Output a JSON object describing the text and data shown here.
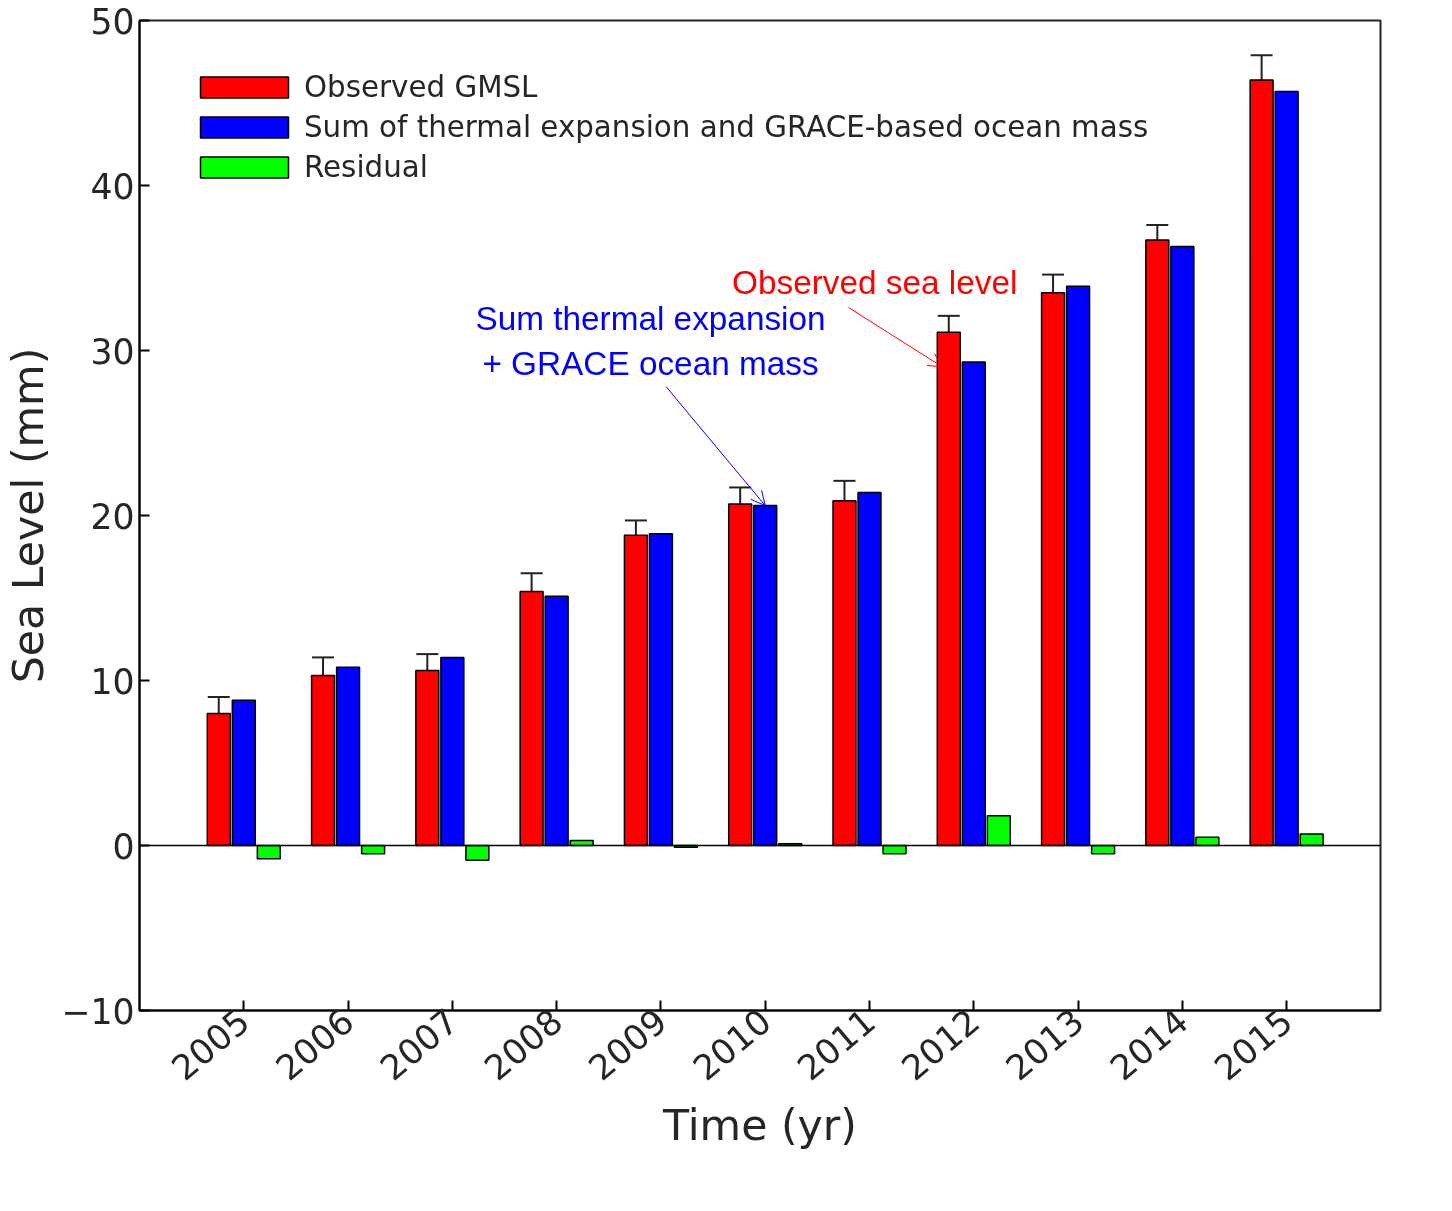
{
  "chart_data": {
    "type": "bar",
    "xlabel": "Time (yr)",
    "ylabel": "Sea Level (mm)",
    "categories": [
      "2005",
      "2006",
      "2007",
      "2008",
      "2009",
      "2010",
      "2011",
      "2012",
      "2013",
      "2014",
      "2015"
    ],
    "series": [
      {
        "name": "Observed GMSL",
        "color": "#ff0000",
        "values": [
          8.0,
          10.3,
          10.6,
          15.4,
          18.8,
          20.7,
          20.9,
          31.1,
          33.5,
          36.7,
          46.4
        ],
        "errors": [
          1.0,
          1.1,
          1.0,
          1.1,
          0.9,
          1.0,
          1.2,
          1.0,
          1.1,
          0.9,
          1.5
        ]
      },
      {
        "name": "Sum of thermal expansion and GRACE-based ocean mass",
        "color": "#0000ff",
        "values": [
          8.8,
          10.8,
          11.4,
          15.1,
          18.9,
          20.6,
          21.4,
          29.3,
          33.9,
          36.3,
          45.7
        ]
      },
      {
        "name": "Residual",
        "color": "#00ff00",
        "values": [
          -0.8,
          -0.5,
          -0.9,
          0.3,
          -0.1,
          0.1,
          -0.5,
          1.8,
          -0.5,
          0.5,
          0.7
        ]
      }
    ],
    "ylim": [
      -10,
      50
    ],
    "yticks": [
      -10,
      0,
      10,
      20,
      30,
      40,
      50
    ],
    "ref_lines": [
      {
        "axis": "y",
        "value": 0,
        "color": "#000000"
      }
    ],
    "annotations": [
      {
        "text": "Sum thermal expansion\n+ GRACE ocean mass",
        "x": "2010",
        "y": 20.6
      },
      "Observed sea level"
    ],
    "legend": "top left",
    "grid": false
  }
}
